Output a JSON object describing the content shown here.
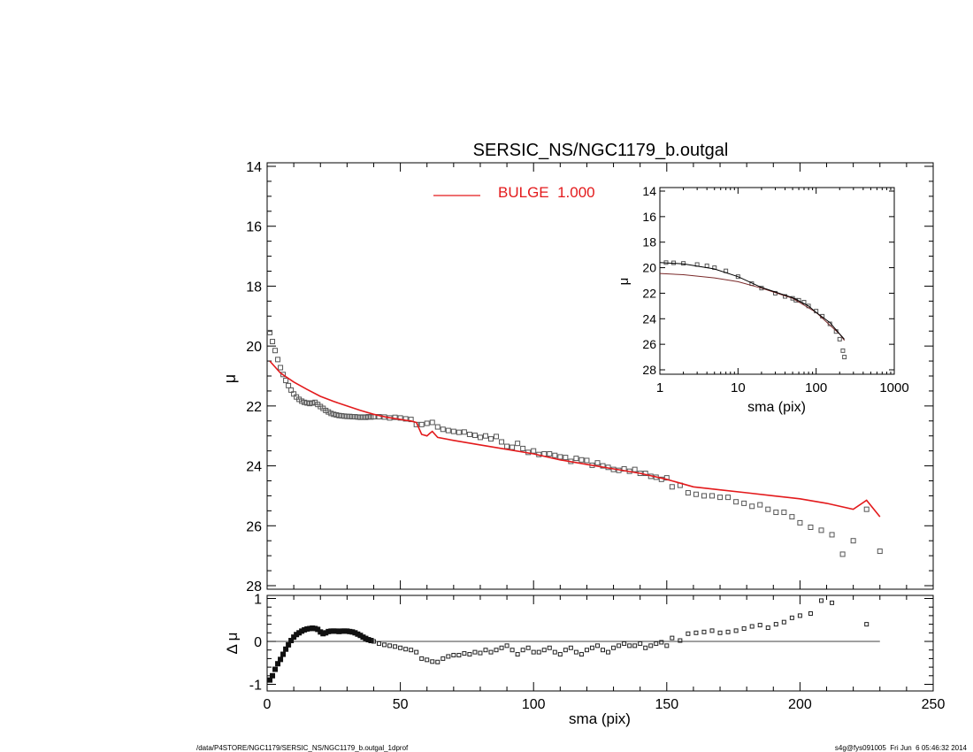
{
  "title": "SERSIC_NS/NGC1179_b.outgal",
  "footer": {
    "left": "/data/P4STORE/NGC1179/SERSIC_NS/NGC1179_b.outgal_1dprof",
    "right": "s4g@fys091005  Fri Jun  6 05:46:32 2014"
  },
  "colors": {
    "data": "#555555",
    "bulge": "#e31a1c",
    "inset_model": "#7a2a2a"
  },
  "chart_data": [
    {
      "panel": "main",
      "type": "scatter",
      "title": "SERSIC_NS/NGC1179_b.outgal",
      "xlabel": "",
      "ylabel": "μ",
      "xlim": [
        0,
        250
      ],
      "ylim": [
        28,
        14
      ],
      "y_inverted": true,
      "y_ticks": [
        "14",
        "16",
        "18",
        "20",
        "22",
        "24",
        "26",
        "28"
      ],
      "legend": {
        "placement": "top-center",
        "entries": [
          "BULGE  1.000"
        ]
      },
      "series": [
        {
          "marker": "square",
          "x": [
            1,
            2,
            3,
            4,
            5,
            6,
            7,
            8,
            9,
            10,
            11,
            12,
            13,
            14,
            15,
            16,
            17,
            18,
            19,
            20,
            21,
            22,
            23,
            24,
            25,
            26,
            27,
            28,
            29,
            30,
            31,
            32,
            33,
            34,
            35,
            36,
            37,
            38,
            39,
            40,
            42,
            44,
            46,
            48,
            50,
            52,
            54,
            56,
            58,
            60,
            62,
            64,
            66,
            68,
            70,
            72,
            74,
            76,
            78,
            80,
            82,
            84,
            86,
            88,
            90,
            92,
            94,
            96,
            98,
            100,
            102,
            104,
            106,
            108,
            110,
            112,
            114,
            116,
            118,
            120,
            122,
            124,
            126,
            128,
            130,
            132,
            134,
            136,
            138,
            140,
            142,
            144,
            146,
            148,
            150,
            152,
            155,
            158,
            161,
            164,
            167,
            170,
            173,
            176,
            179,
            182,
            185,
            188,
            191,
            194,
            197,
            200,
            204,
            208,
            212,
            216,
            220,
            225,
            230
          ],
          "y": [
            19.55,
            19.85,
            20.15,
            20.45,
            20.72,
            20.95,
            21.15,
            21.32,
            21.47,
            21.6,
            21.7,
            21.78,
            21.84,
            21.88,
            21.9,
            21.92,
            21.9,
            21.88,
            21.95,
            22.02,
            22.08,
            22.15,
            22.2,
            22.25,
            22.28,
            22.3,
            22.32,
            22.33,
            22.34,
            22.35,
            22.35,
            22.36,
            22.36,
            22.37,
            22.38,
            22.37,
            22.38,
            22.36,
            22.37,
            22.36,
            22.36,
            22.37,
            22.4,
            22.38,
            22.4,
            22.43,
            22.45,
            22.62,
            22.62,
            22.58,
            22.55,
            22.7,
            22.78,
            22.82,
            22.85,
            22.88,
            22.87,
            22.95,
            22.98,
            23.05,
            23.0,
            23.1,
            23.02,
            23.2,
            23.35,
            23.38,
            23.25,
            23.42,
            23.55,
            23.5,
            23.62,
            23.6,
            23.6,
            23.65,
            23.7,
            23.72,
            23.85,
            23.75,
            23.8,
            23.82,
            23.98,
            23.9,
            24.0,
            24.05,
            24.12,
            24.15,
            24.1,
            24.18,
            24.12,
            24.25,
            24.25,
            24.35,
            24.38,
            24.45,
            24.4,
            24.7,
            24.65,
            24.9,
            24.95,
            25.0,
            25.0,
            25.05,
            25.05,
            25.2,
            25.25,
            25.35,
            25.3,
            25.45,
            25.55,
            25.55,
            25.7,
            25.9,
            26.05,
            26.15,
            26.3,
            26.95,
            26.5,
            25.45,
            26.85
          ]
        },
        {
          "name": "BULGE  1.000",
          "type": "line",
          "x": [
            1,
            5,
            10,
            15,
            20,
            25,
            30,
            35,
            40,
            45,
            50,
            52,
            54,
            56,
            58,
            60,
            61,
            62,
            64,
            70,
            80,
            90,
            100,
            110,
            120,
            130,
            140,
            150,
            160,
            170,
            180,
            190,
            200,
            210,
            220,
            225,
            230
          ],
          "y": [
            20.5,
            20.9,
            21.2,
            21.45,
            21.68,
            21.85,
            22.0,
            22.15,
            22.28,
            22.38,
            22.45,
            22.48,
            22.5,
            22.55,
            22.95,
            23.0,
            22.92,
            22.85,
            23.05,
            23.15,
            23.3,
            23.45,
            23.6,
            23.8,
            23.95,
            24.1,
            24.25,
            24.45,
            24.7,
            24.8,
            24.9,
            25.0,
            25.1,
            25.25,
            25.45,
            25.15,
            25.7
          ]
        }
      ]
    },
    {
      "panel": "inset",
      "type": "scatter",
      "xlabel": "sma (pix)",
      "ylabel": "μ",
      "x_scale": "log",
      "xlim": [
        1,
        1000
      ],
      "ylim": [
        28,
        14
      ],
      "y_inverted": true,
      "x_ticks": [
        "1",
        "10",
        "100",
        "1000"
      ],
      "y_ticks": [
        "14",
        "16",
        "18",
        "20",
        "22",
        "24",
        "26",
        "28"
      ],
      "series": [
        {
          "marker": "square",
          "x": [
            1.2,
            1.5,
            2,
            3,
            4,
            5,
            7,
            10,
            15,
            20,
            30,
            40,
            50,
            55,
            60,
            70,
            80,
            100,
            120,
            150,
            180,
            200,
            220,
            230
          ],
          "y": [
            19.6,
            19.62,
            19.66,
            19.75,
            19.85,
            20.0,
            20.25,
            20.7,
            21.25,
            21.6,
            22.0,
            22.25,
            22.4,
            22.55,
            22.55,
            22.7,
            23.0,
            23.4,
            23.8,
            24.4,
            25.0,
            25.6,
            26.5,
            27.0
          ]
        },
        {
          "type": "line",
          "x": [
            1,
            2,
            5,
            10,
            20,
            50,
            100,
            150,
            200,
            230
          ],
          "y": [
            20.45,
            20.55,
            20.8,
            21.1,
            21.6,
            22.4,
            23.5,
            24.5,
            25.2,
            25.7
          ]
        },
        {
          "type": "line",
          "x": [
            1,
            2,
            5,
            10,
            20,
            50,
            60,
            80,
            100,
            150,
            200,
            230
          ],
          "y": [
            19.6,
            19.7,
            20.1,
            20.7,
            21.55,
            22.35,
            22.6,
            23.0,
            23.5,
            24.3,
            25.2,
            25.6
          ]
        }
      ]
    },
    {
      "panel": "residual",
      "type": "scatter",
      "xlabel": "sma (pix)",
      "ylabel": "Δ μ",
      "xlim": [
        0,
        250
      ],
      "ylim": [
        -1.1,
        1.05
      ],
      "x_ticks": [
        "0",
        "50",
        "100",
        "150",
        "200",
        "250"
      ],
      "y_ticks": [
        "1",
        "0",
        "-1"
      ],
      "series": [
        {
          "marker": "square",
          "x": [
            1,
            2,
            3,
            4,
            5,
            6,
            7,
            8,
            9,
            10,
            11,
            12,
            13,
            14,
            15,
            16,
            17,
            18,
            19,
            20,
            21,
            22,
            23,
            24,
            25,
            26,
            27,
            28,
            29,
            30,
            31,
            32,
            33,
            34,
            35,
            36,
            37,
            38,
            39,
            40,
            42,
            44,
            46,
            48,
            50,
            52,
            54,
            56,
            58,
            60,
            62,
            64,
            66,
            68,
            70,
            72,
            74,
            76,
            78,
            80,
            82,
            84,
            86,
            88,
            90,
            92,
            94,
            96,
            98,
            100,
            102,
            104,
            106,
            108,
            110,
            112,
            114,
            116,
            118,
            120,
            122,
            124,
            126,
            128,
            130,
            132,
            134,
            136,
            138,
            140,
            142,
            144,
            146,
            148,
            150,
            152,
            155,
            158,
            161,
            164,
            167,
            170,
            173,
            176,
            179,
            182,
            185,
            188,
            191,
            194,
            197,
            200,
            204,
            208,
            212,
            225
          ],
          "y": [
            -0.9,
            -0.8,
            -0.65,
            -0.52,
            -0.42,
            -0.3,
            -0.18,
            -0.08,
            0.02,
            0.1,
            0.16,
            0.2,
            0.24,
            0.27,
            0.29,
            0.3,
            0.31,
            0.3,
            0.28,
            0.22,
            0.18,
            0.2,
            0.23,
            0.24,
            0.24,
            0.24,
            0.23,
            0.24,
            0.24,
            0.24,
            0.23,
            0.22,
            0.2,
            0.17,
            0.14,
            0.1,
            0.07,
            0.04,
            0.02,
            0.0,
            -0.05,
            -0.08,
            -0.1,
            -0.12,
            -0.15,
            -0.18,
            -0.2,
            -0.25,
            -0.4,
            -0.43,
            -0.47,
            -0.48,
            -0.4,
            -0.35,
            -0.32,
            -0.32,
            -0.28,
            -0.3,
            -0.25,
            -0.27,
            -0.2,
            -0.25,
            -0.2,
            -0.15,
            -0.1,
            -0.2,
            -0.3,
            -0.2,
            -0.15,
            -0.25,
            -0.25,
            -0.2,
            -0.15,
            -0.25,
            -0.3,
            -0.2,
            -0.15,
            -0.25,
            -0.3,
            -0.2,
            -0.15,
            -0.1,
            -0.2,
            -0.25,
            -0.15,
            -0.1,
            -0.05,
            -0.1,
            -0.1,
            -0.05,
            -0.15,
            -0.1,
            -0.05,
            -0.02,
            -0.1,
            0.08,
            0.02,
            0.18,
            0.2,
            0.22,
            0.25,
            0.2,
            0.22,
            0.25,
            0.3,
            0.35,
            0.38,
            0.32,
            0.4,
            0.45,
            0.55,
            0.6,
            0.65,
            0.95,
            0.9,
            0.4
          ]
        }
      ]
    }
  ]
}
